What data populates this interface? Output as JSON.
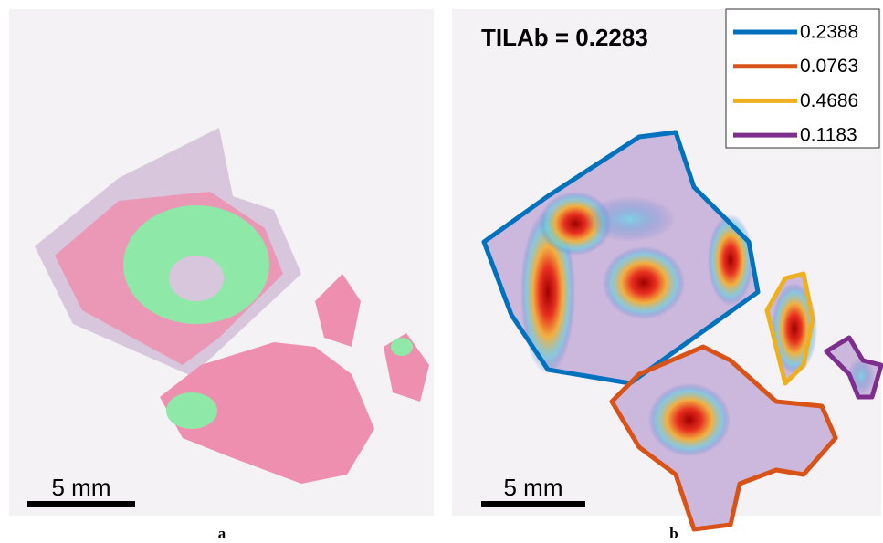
{
  "panels": [
    {
      "scale_bar": "5 mm",
      "caption": "a"
    },
    {
      "annotation": "TILAb = 0.2283",
      "legend": [
        {
          "label": "0.2388",
          "color": "#0072bd"
        },
        {
          "label": "0.0763",
          "color": "#d95319"
        },
        {
          "label": "0.4686",
          "color": "#edb120"
        },
        {
          "label": "0.1183",
          "color": "#7e2f8e"
        }
      ],
      "scale_bar": "5 mm",
      "caption": "b"
    }
  ]
}
